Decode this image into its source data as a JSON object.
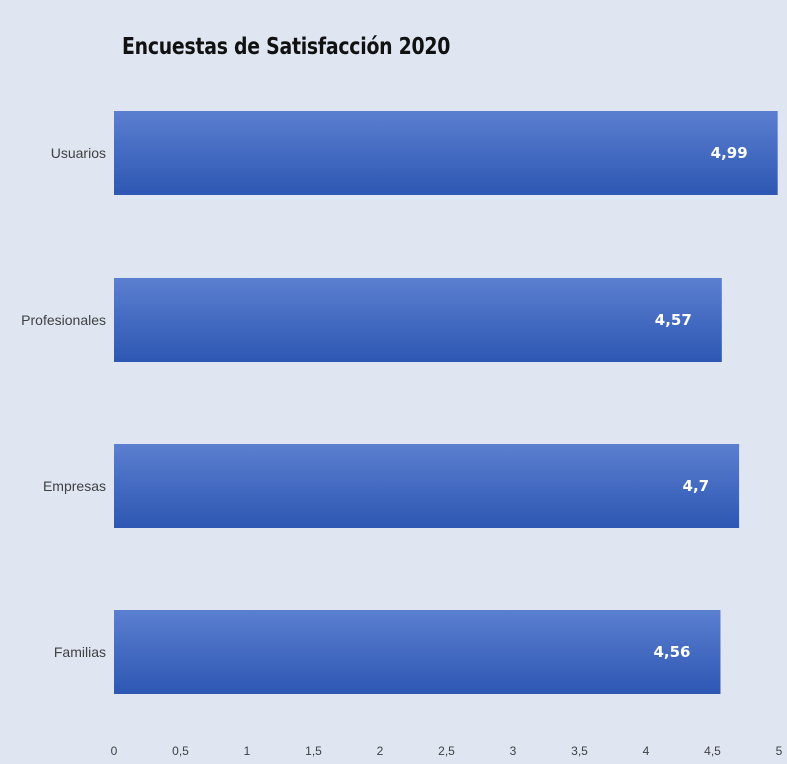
{
  "chart_data": {
    "type": "bar",
    "orientation": "horizontal",
    "title": "Encuestas de Satisfacción 2020",
    "categories": [
      "Usuarios",
      "Profesionales",
      "Empresas",
      "Familias"
    ],
    "values": [
      4.99,
      4.57,
      4.7,
      4.56
    ],
    "data_labels": [
      "4,99",
      "4,57",
      "4,7",
      "4,56"
    ],
    "x_ticks": [
      "0",
      "0,5",
      "1",
      "1,5",
      "2",
      "2,5",
      "3",
      "3,5",
      "4",
      "4,5",
      "5"
    ],
    "xlim": [
      0,
      5
    ],
    "xlabel": "",
    "ylabel": "",
    "grid": false,
    "legend": "none",
    "colors": {
      "bar_top": "#5b7fd0",
      "bar_bottom": "#2d57b3",
      "background": "#dfe6f2",
      "label_text": "#404040",
      "data_label_text": "#ffffff"
    }
  }
}
